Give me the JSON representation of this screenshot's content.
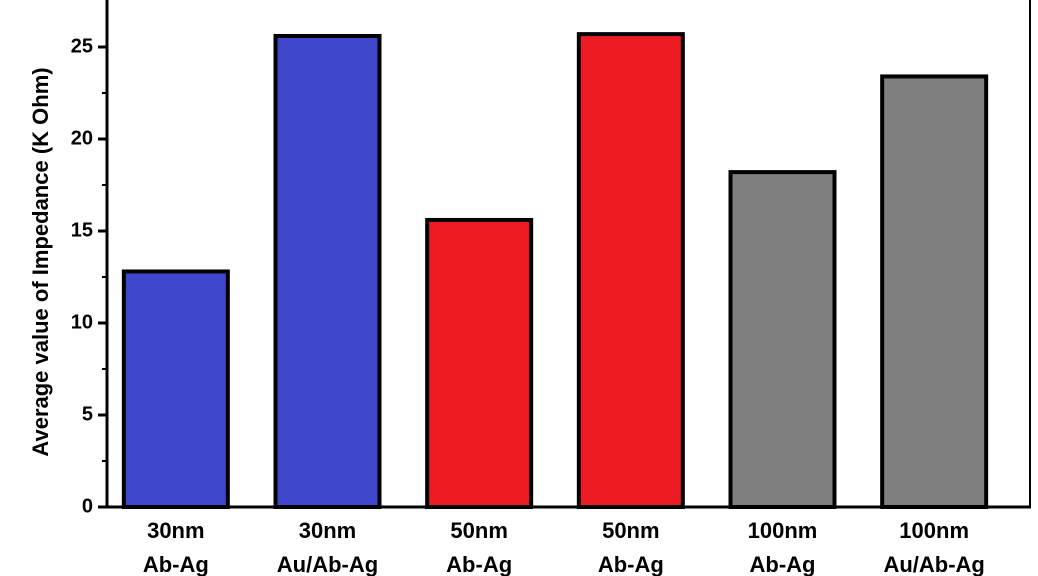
{
  "chart_data": {
    "type": "bar",
    "y_label": "Average value of  Impedance (K Ohm)",
    "categories": [
      [
        "30nm",
        "Ab-Ag"
      ],
      [
        "30nm",
        "Au/Ab-Ag"
      ],
      [
        "50nm",
        "Ab-Ag"
      ],
      [
        "50nm",
        "Ab-Ag"
      ],
      [
        "100nm",
        "Ab-Ag"
      ],
      [
        "100nm",
        "Au/Ab-Ag"
      ]
    ],
    "values": [
      12.8,
      25.6,
      15.6,
      25.7,
      18.2,
      23.4
    ],
    "colors": [
      "#3f48cc",
      "#3f48cc",
      "#ed1c24",
      "#ed1c24",
      "#7f7f7f",
      "#7f7f7f"
    ],
    "ylim": [
      0,
      27.5
    ],
    "yticks": [
      0,
      5,
      10,
      15,
      20,
      25
    ],
    "yminorticks": [
      2.5,
      7.5,
      12.5,
      17.5,
      22.5
    ],
    "grid": false
  }
}
